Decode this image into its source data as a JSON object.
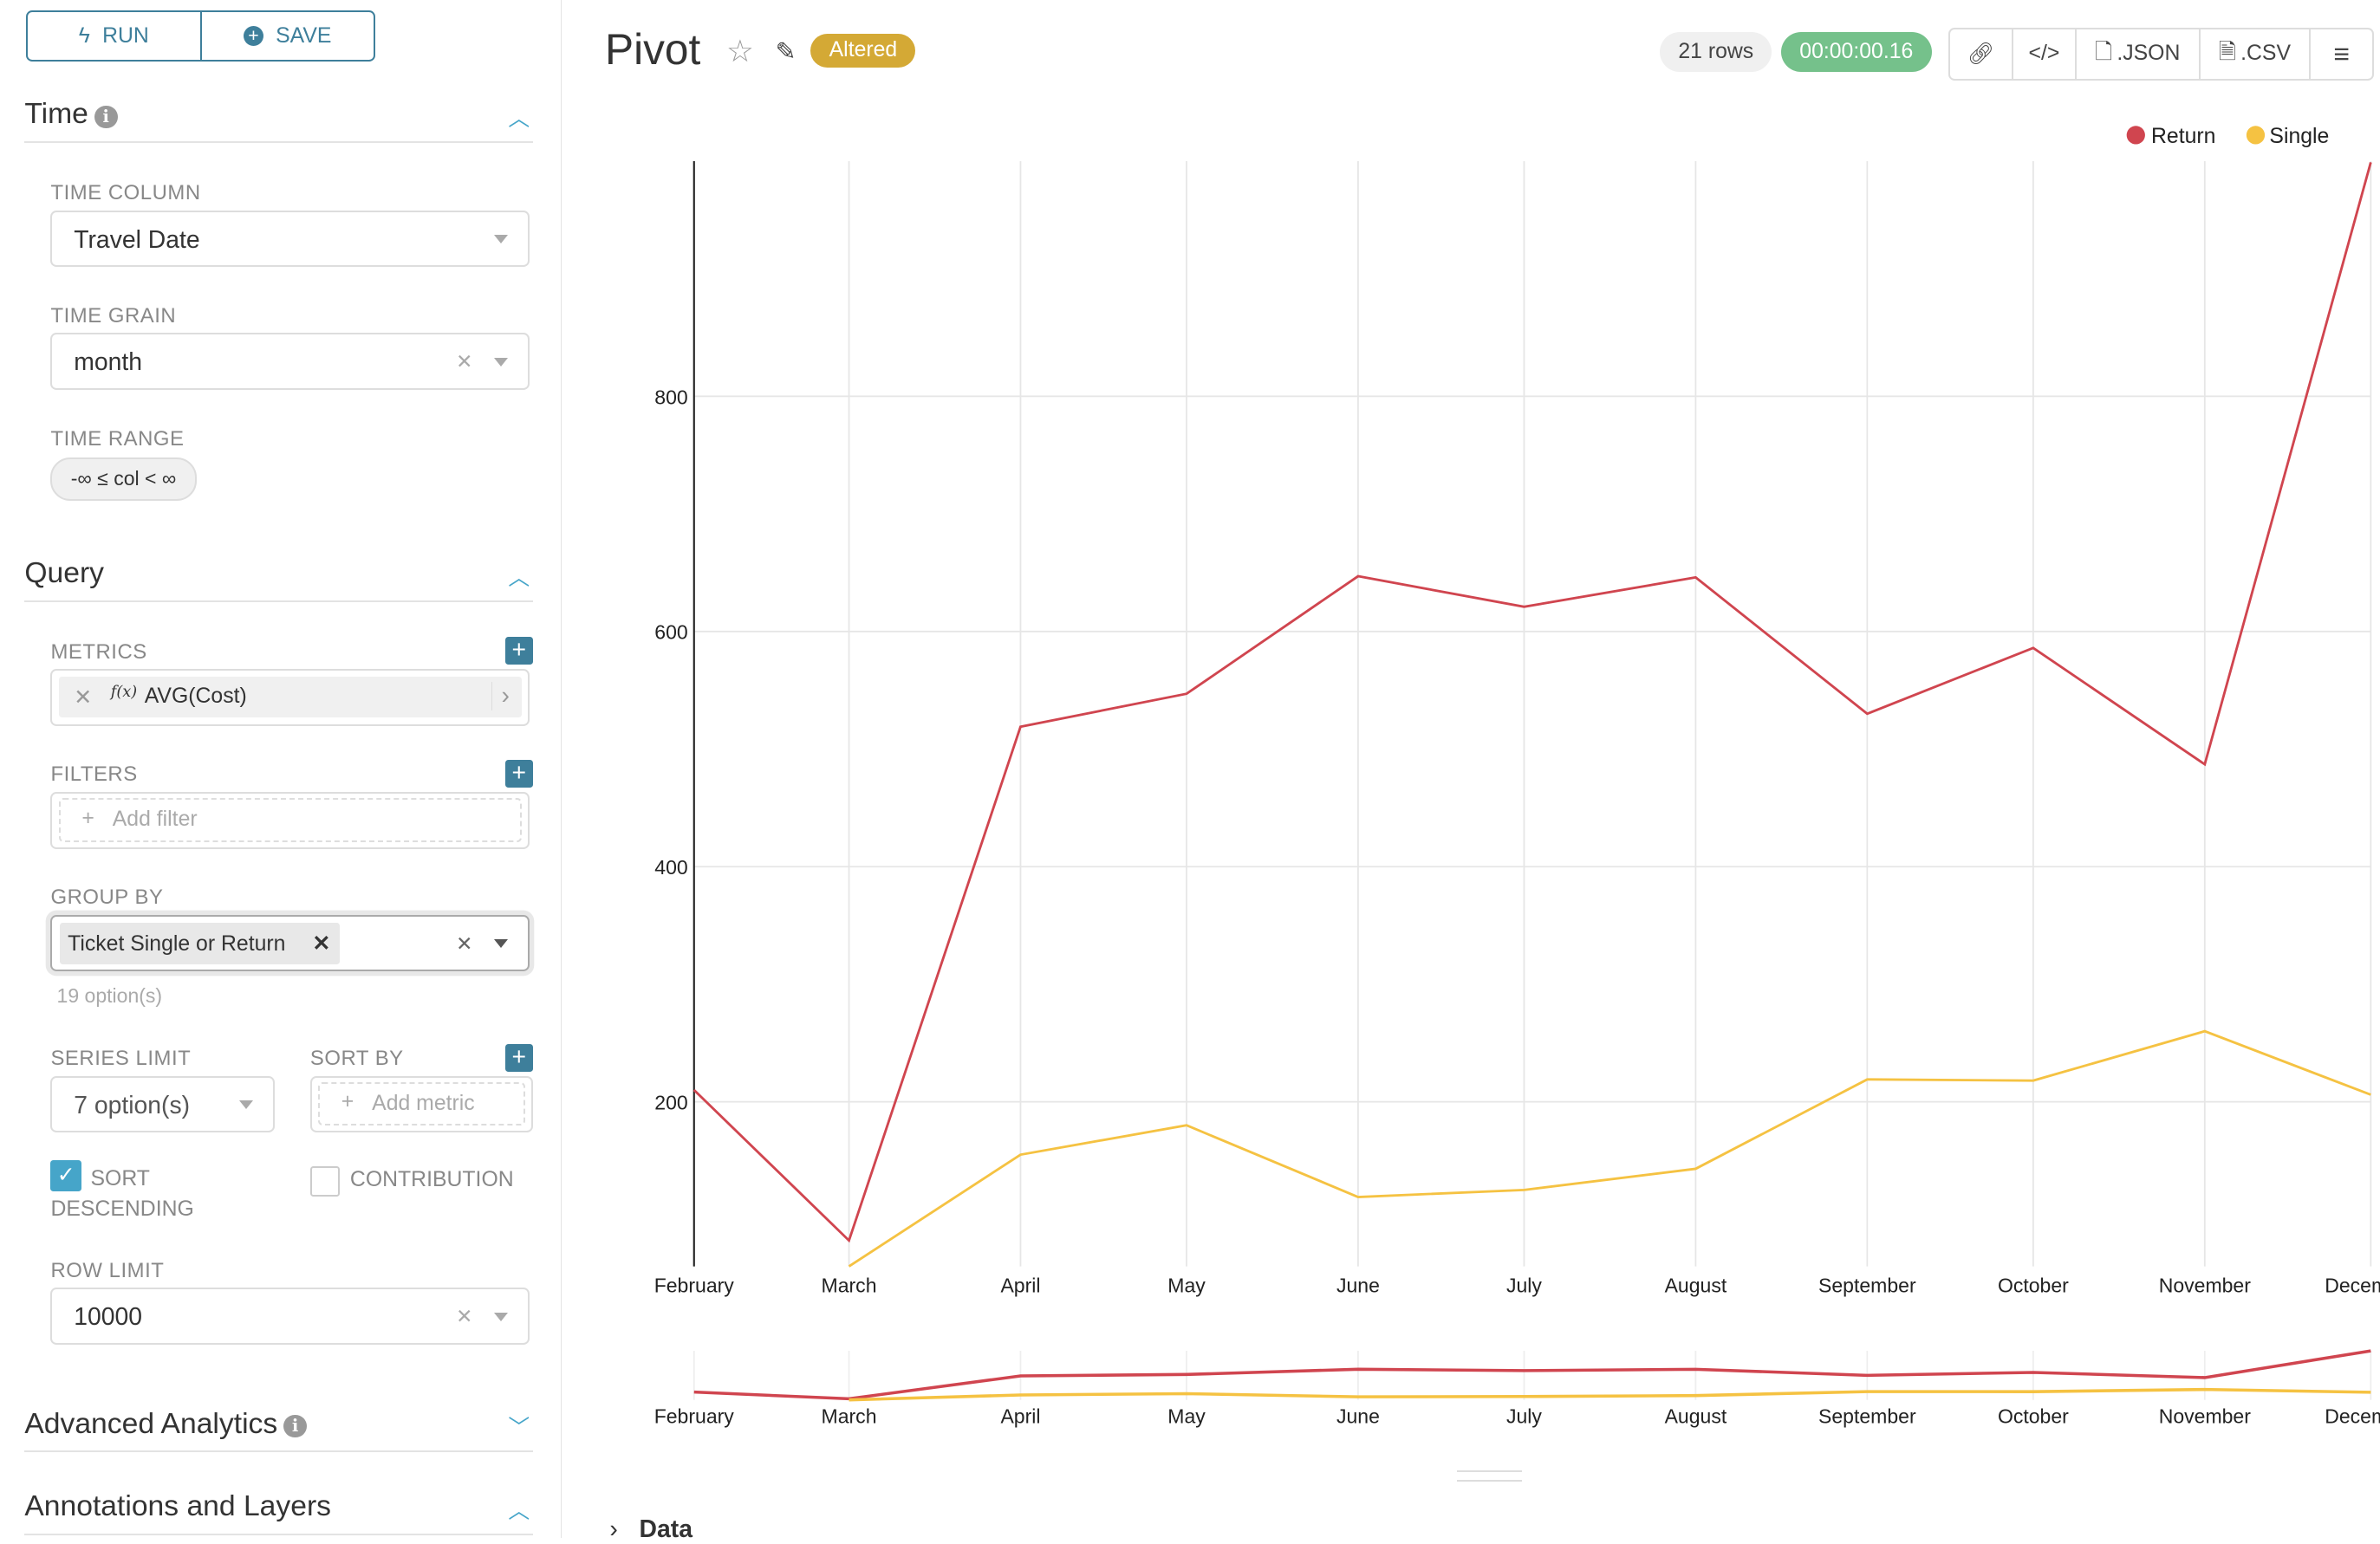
{
  "toolbar": {
    "run_label": "RUN",
    "save_label": "SAVE"
  },
  "sections": {
    "time": {
      "title": "Time",
      "time_column_label": "TIME COLUMN",
      "time_column_value": "Travel Date",
      "time_grain_label": "TIME GRAIN",
      "time_grain_value": "month",
      "time_range_label": "TIME RANGE",
      "time_range_value": "-∞ ≤ col < ∞"
    },
    "query": {
      "title": "Query",
      "metrics_label": "METRICS",
      "metric_value": "AVG(Cost)",
      "metric_fx": "f(x)",
      "filters_label": "FILTERS",
      "add_filter": "Add filter",
      "group_by_label": "GROUP BY",
      "group_by_value": "Ticket Single or Return",
      "group_by_options": "19 option(s)",
      "series_limit_label": "SERIES LIMIT",
      "series_limit_value": "7 option(s)",
      "sort_by_label": "SORT BY",
      "add_metric": "Add metric",
      "sort_desc_label": "SORT DESCENDING",
      "sort_desc_checked": true,
      "contribution_label": "CONTRIBUTION",
      "contribution_checked": false,
      "row_limit_label": "ROW LIMIT",
      "row_limit_value": "10000"
    },
    "advanced": {
      "title": "Advanced Analytics"
    },
    "annotations": {
      "title": "Annotations and Layers"
    }
  },
  "header": {
    "title": "Pivot",
    "status_badge": "Altered",
    "rows": "21 rows",
    "timer": "00:00:00.16",
    "json_label": ".JSON",
    "csv_label": ".CSV"
  },
  "colors": {
    "accent": "#3e7f9b",
    "return": "#d0454f",
    "single": "#f5c242",
    "altered": "#d4a935",
    "timer": "#75c18b"
  },
  "data_section": {
    "label": "Data"
  },
  "chart_data": {
    "type": "line",
    "categories": [
      "February",
      "March",
      "April",
      "May",
      "June",
      "July",
      "August",
      "September",
      "October",
      "November",
      "December"
    ],
    "series": [
      {
        "name": "Return",
        "values": [
          210,
          82,
          519,
          547,
          647,
          621,
          646,
          530,
          586,
          487,
          999
        ]
      },
      {
        "name": "Single",
        "values": [
          null,
          60,
          155,
          180,
          119,
          125,
          143,
          219,
          218,
          260,
          206
        ]
      }
    ],
    "yticks": [
      200,
      400,
      600,
      800
    ],
    "ylim": [
      60,
      1000
    ],
    "grid": true,
    "legend": "top-right",
    "brush": true
  }
}
